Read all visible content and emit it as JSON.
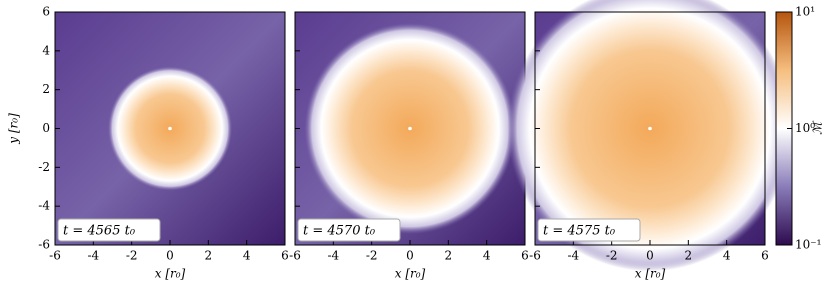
{
  "chart_data": [
    {
      "type": "image",
      "xlabel": "x [r₀]",
      "ylabel": "y [r₀]",
      "annotation": "t = 4565 t₀",
      "xlim": [
        -6,
        6
      ],
      "ylim": [
        -6,
        6
      ],
      "xticks": [
        -6,
        -4,
        -2,
        0,
        2,
        4,
        6
      ],
      "yticks": [
        -6,
        -4,
        -2,
        0,
        2,
        4,
        6
      ],
      "ytick_labels": true
    },
    {
      "type": "image",
      "xlabel": "x [r₀]",
      "annotation": "t = 4570 t₀",
      "xlim": [
        -6,
        6
      ],
      "ylim": [
        -6,
        6
      ],
      "xticks": [
        -6,
        -4,
        -2,
        0,
        2,
        4,
        6
      ],
      "yticks": [
        -6,
        -4,
        -2,
        0,
        2,
        4,
        6
      ],
      "ytick_labels": false
    },
    {
      "type": "image",
      "xlabel": "x [r₀]",
      "annotation": "t = 4575 t₀",
      "xlim": [
        -6,
        6
      ],
      "ylim": [
        -6,
        6
      ],
      "xticks": [
        -6,
        -4,
        -2,
        0,
        2,
        4,
        6
      ],
      "yticks": [
        -6,
        -4,
        -2,
        0,
        2,
        4,
        6
      ],
      "ytick_labels": false
    },
    {
      "type": "colorbar",
      "label": "ℳ",
      "log_scale": true,
      "ylim": [
        0.1,
        10
      ],
      "yticks": [
        {
          "value": 0.1,
          "label": "10⁻¹"
        },
        {
          "value": 1,
          "label": "10⁰"
        },
        {
          "value": 10,
          "label": "10¹"
        }
      ]
    }
  ]
}
